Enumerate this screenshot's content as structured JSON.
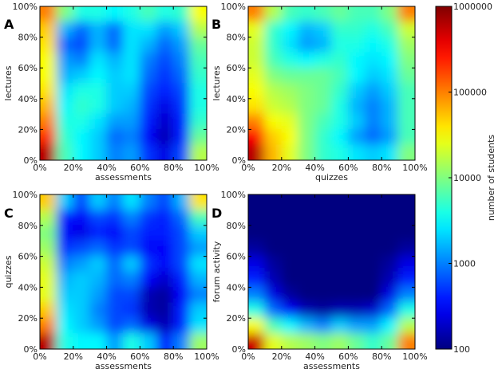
{
  "chart_data": [
    {
      "type": "heatmap",
      "panel_label": "A",
      "xlabel": "assessments",
      "ylabel": "lectures",
      "xticks": [
        "0%",
        "20%",
        "40%",
        "60%",
        "80%",
        "100%"
      ],
      "yticks": [
        "0%",
        "20%",
        "40%",
        "60%",
        "80%",
        "100%"
      ],
      "xlim": [
        0,
        100
      ],
      "ylim": [
        0,
        100
      ],
      "x_bin_centers": [
        5,
        15,
        25,
        35,
        45,
        55,
        65,
        75,
        85,
        95
      ],
      "y_bin_centers_top_to_bottom": [
        95,
        85,
        75,
        65,
        55,
        45,
        35,
        25,
        15,
        5
      ],
      "values": [
        [
          100000,
          10000,
          4000,
          4000,
          3000,
          4000,
          6000,
          4000,
          5000,
          30000
        ],
        [
          50000,
          1600,
          800,
          1600,
          800,
          2500,
          2500,
          1300,
          2000,
          16000
        ],
        [
          40000,
          800,
          600,
          1600,
          800,
          2500,
          1600,
          800,
          1300,
          8000
        ],
        [
          30000,
          1300,
          1000,
          2500,
          1600,
          2500,
          1000,
          600,
          1000,
          6000
        ],
        [
          30000,
          1600,
          2000,
          3000,
          2000,
          2500,
          800,
          500,
          800,
          5000
        ],
        [
          40000,
          2500,
          4000,
          4000,
          2000,
          2000,
          600,
          400,
          600,
          4000
        ],
        [
          60000,
          3000,
          5000,
          4000,
          2000,
          1600,
          500,
          250,
          500,
          4000
        ],
        [
          100000,
          4000,
          4000,
          2500,
          1300,
          1300,
          400,
          200,
          400,
          5000
        ],
        [
          200000,
          5000,
          3000,
          2000,
          800,
          1000,
          300,
          160,
          400,
          8000
        ],
        [
          600000,
          6000,
          3000,
          2000,
          1000,
          1300,
          500,
          250,
          600,
          16000
        ]
      ]
    },
    {
      "type": "heatmap",
      "panel_label": "B",
      "xlabel": "quizzes",
      "ylabel": "lectures",
      "xticks": [
        "0%",
        "20%",
        "40%",
        "60%",
        "80%",
        "100%"
      ],
      "yticks": [
        "0%",
        "20%",
        "40%",
        "60%",
        "80%",
        "100%"
      ],
      "xlim": [
        0,
        100
      ],
      "ylim": [
        0,
        100
      ],
      "x_bin_centers": [
        5,
        15,
        25,
        35,
        45,
        55,
        65,
        75,
        85,
        95
      ],
      "y_bin_centers_top_to_bottom": [
        95,
        85,
        75,
        65,
        55,
        45,
        35,
        25,
        15,
        5
      ],
      "values": [
        [
          100000,
          16000,
          6000,
          5000,
          6000,
          8000,
          6000,
          6000,
          10000,
          100000
        ],
        [
          25000,
          5000,
          3000,
          1600,
          2000,
          5000,
          5000,
          4000,
          6000,
          20000
        ],
        [
          20000,
          5000,
          2500,
          1300,
          1600,
          4000,
          4000,
          3000,
          4000,
          13000
        ],
        [
          20000,
          6000,
          4000,
          3000,
          4000,
          5000,
          3000,
          2500,
          3000,
          10000
        ],
        [
          25000,
          10000,
          8000,
          8000,
          8000,
          6000,
          3000,
          2000,
          2500,
          8000
        ],
        [
          30000,
          16000,
          13000,
          10000,
          8000,
          5000,
          2000,
          1300,
          2000,
          6000
        ],
        [
          40000,
          20000,
          16000,
          10000,
          8000,
          4000,
          1600,
          1000,
          1600,
          6000
        ],
        [
          100000,
          30000,
          25000,
          10000,
          6000,
          4000,
          2000,
          1000,
          1600,
          6000
        ],
        [
          300000,
          50000,
          30000,
          10000,
          5000,
          3000,
          1300,
          800,
          1300,
          6000
        ],
        [
          600000,
          60000,
          25000,
          10000,
          5000,
          4000,
          2500,
          2000,
          2500,
          10000
        ]
      ]
    },
    {
      "type": "heatmap",
      "panel_label": "C",
      "xlabel": "assessments",
      "ylabel": "quizzes",
      "xticks": [
        "0%",
        "20%",
        "40%",
        "60%",
        "80%",
        "100%"
      ],
      "yticks": [
        "0%",
        "20%",
        "40%",
        "60%",
        "80%",
        "100%"
      ],
      "xlim": [
        0,
        100
      ],
      "ylim": [
        0,
        100
      ],
      "x_bin_centers": [
        5,
        15,
        25,
        35,
        45,
        55,
        65,
        75,
        85,
        95
      ],
      "y_bin_centers_top_to_bottom": [
        95,
        85,
        75,
        65,
        55,
        45,
        35,
        25,
        15,
        5
      ],
      "values": [
        [
          50000,
          2000,
          600,
          2000,
          1000,
          2500,
          1000,
          600,
          1600,
          40000
        ],
        [
          16000,
          400,
          300,
          600,
          500,
          1000,
          500,
          400,
          800,
          6000
        ],
        [
          10000,
          300,
          250,
          400,
          300,
          600,
          400,
          400,
          600,
          2000
        ],
        [
          13000,
          500,
          600,
          800,
          500,
          600,
          300,
          300,
          600,
          1300
        ],
        [
          20000,
          1000,
          1300,
          2000,
          800,
          2000,
          500,
          300,
          600,
          2500
        ],
        [
          25000,
          1600,
          2000,
          1600,
          800,
          1000,
          300,
          200,
          400,
          1600
        ],
        [
          25000,
          2000,
          2000,
          1300,
          600,
          600,
          160,
          130,
          300,
          1000
        ],
        [
          50000,
          2500,
          2000,
          1000,
          600,
          500,
          160,
          130,
          400,
          2000
        ],
        [
          100000,
          3000,
          2000,
          1300,
          600,
          800,
          250,
          160,
          400,
          2500
        ],
        [
          600000,
          4000,
          3000,
          3000,
          1300,
          4000,
          2000,
          400,
          1000,
          13000
        ]
      ]
    },
    {
      "type": "heatmap",
      "panel_label": "D",
      "xlabel": "assessments",
      "ylabel": "forum activity",
      "xticks": [
        "0%",
        "20%",
        "40%",
        "60%",
        "80%",
        "100%"
      ],
      "yticks": [
        "0%",
        "20%",
        "40%",
        "60%",
        "80%",
        "100%"
      ],
      "xlim": [
        0,
        100
      ],
      "ylim": [
        0,
        100
      ],
      "x_bin_centers": [
        5,
        15,
        25,
        35,
        45,
        55,
        65,
        75,
        85,
        95
      ],
      "y_bin_centers_top_to_bottom": [
        95,
        85,
        75,
        65,
        55,
        45,
        35,
        25,
        15,
        5
      ],
      "values": [
        [
          100,
          100,
          100,
          100,
          100,
          100,
          100,
          100,
          100,
          100
        ],
        [
          100,
          100,
          100,
          100,
          100,
          100,
          100,
          100,
          100,
          100
        ],
        [
          100,
          100,
          100,
          100,
          100,
          100,
          100,
          100,
          100,
          100
        ],
        [
          130,
          100,
          100,
          100,
          100,
          100,
          100,
          100,
          100,
          130
        ],
        [
          250,
          130,
          100,
          100,
          100,
          100,
          100,
          100,
          130,
          250
        ],
        [
          400,
          160,
          100,
          100,
          100,
          100,
          100,
          100,
          160,
          400
        ],
        [
          1000,
          250,
          130,
          100,
          100,
          100,
          100,
          100,
          250,
          1000
        ],
        [
          4000,
          800,
          300,
          160,
          130,
          160,
          160,
          200,
          800,
          4000
        ],
        [
          30000,
          6000,
          3000,
          1600,
          1000,
          2000,
          1300,
          1300,
          3000,
          16000
        ],
        [
          500000,
          25000,
          16000,
          13000,
          10000,
          13000,
          8000,
          5000,
          8000,
          100000
        ]
      ]
    }
  ],
  "colorbar": {
    "label": "number of students",
    "scale": "log",
    "colormap": "jet",
    "range": [
      100,
      1000000
    ],
    "ticks": [
      "1000000",
      "100000",
      "10000",
      "1000",
      "100"
    ]
  }
}
